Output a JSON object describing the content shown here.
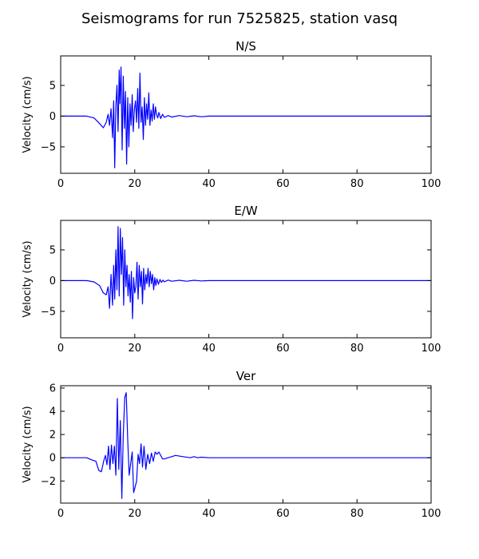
{
  "figure": {
    "title": "Seismograms for run 7525825, station vasq"
  },
  "chart_data": [
    {
      "type": "line",
      "title": "N/S",
      "xlabel": "",
      "ylabel": "Velocity (cm/s)",
      "xlim": [
        0,
        100
      ],
      "ylim": [
        -9.3,
        9.8
      ],
      "xticks": [
        0,
        20,
        40,
        60,
        80,
        100
      ],
      "yticks": [
        5,
        0,
        -5
      ],
      "grid": false,
      "series": [
        {
          "color": "#0000ff",
          "x": [
            0,
            7,
            9,
            10.5,
            11.5,
            12.3,
            12.8,
            13.2,
            13.6,
            14.0,
            14.3,
            14.6,
            14.9,
            15.2,
            15.5,
            15.8,
            16.0,
            16.3,
            16.6,
            16.9,
            17.2,
            17.5,
            17.8,
            18.1,
            18.4,
            18.7,
            19.0,
            19.3,
            19.6,
            19.9,
            20.2,
            20.5,
            20.8,
            21.1,
            21.4,
            21.7,
            22.0,
            22.3,
            22.6,
            22.9,
            23.2,
            23.5,
            23.8,
            24.1,
            24.4,
            24.7,
            25.0,
            25.3,
            25.6,
            25.9,
            26.2,
            26.5,
            27.0,
            27.5,
            28.0,
            29.0,
            30,
            32,
            34,
            36,
            38,
            40,
            50,
            60,
            70,
            80,
            90,
            100
          ],
          "values": [
            0,
            0,
            -0.3,
            -1.2,
            -1.9,
            -1.0,
            0.3,
            -1.5,
            1.2,
            -3.5,
            2.5,
            -8.4,
            1.5,
            5.0,
            -2.5,
            7.5,
            2.0,
            8.0,
            -5.5,
            6.5,
            -2.0,
            4.0,
            -7.8,
            3.0,
            -5.0,
            2.0,
            -1.5,
            3.5,
            -2.5,
            1.0,
            2.5,
            -1.0,
            4.5,
            -2.0,
            7.0,
            -1.0,
            1.5,
            -3.8,
            3.0,
            -1.5,
            2.0,
            -0.5,
            3.8,
            -1.5,
            1.0,
            -0.8,
            2.0,
            -0.5,
            1.5,
            0.2,
            -0.3,
            0.6,
            -0.4,
            0.3,
            -0.2,
            0.1,
            -0.15,
            0.1,
            -0.1,
            0.05,
            -0.1,
            0,
            0,
            0,
            0,
            0,
            0,
            0
          ]
        }
      ]
    },
    {
      "type": "line",
      "title": "E/W",
      "xlabel": "",
      "ylabel": "Velocity (cm/s)",
      "xlim": [
        0,
        100
      ],
      "ylim": [
        -9.3,
        9.8
      ],
      "xticks": [
        0,
        20,
        40,
        60,
        80,
        100
      ],
      "yticks": [
        5,
        0,
        -5
      ],
      "grid": false,
      "series": [
        {
          "color": "#0000ff",
          "x": [
            0,
            7,
            9,
            10.5,
            11.5,
            12.3,
            12.8,
            13.2,
            13.6,
            14.0,
            14.3,
            14.6,
            14.9,
            15.2,
            15.5,
            15.8,
            16.1,
            16.4,
            16.7,
            17.0,
            17.3,
            17.6,
            17.9,
            18.2,
            18.5,
            18.8,
            19.1,
            19.4,
            19.7,
            20.0,
            20.3,
            20.6,
            20.9,
            21.2,
            21.5,
            21.8,
            22.1,
            22.4,
            22.7,
            23.0,
            23.3,
            23.6,
            23.9,
            24.2,
            24.5,
            24.8,
            25.1,
            25.4,
            25.7,
            26.0,
            26.4,
            26.8,
            27.2,
            27.6,
            28.0,
            29.0,
            30,
            32,
            34,
            36,
            38,
            40,
            50,
            60,
            70,
            80,
            90,
            100
          ],
          "values": [
            0,
            0,
            -0.2,
            -0.8,
            -2.0,
            -2.3,
            -1.0,
            -4.5,
            1.0,
            -4.0,
            2.5,
            -3.0,
            5.0,
            -1.5,
            8.8,
            -2.5,
            8.5,
            1.0,
            7.0,
            -4.0,
            5.0,
            -1.0,
            2.5,
            -2.5,
            1.0,
            -3.5,
            1.5,
            -6.2,
            0.5,
            -2.0,
            -1.0,
            3.0,
            -3.0,
            2.5,
            -1.0,
            1.5,
            -3.8,
            2.0,
            -1.5,
            1.0,
            -0.5,
            2.0,
            -1.0,
            1.5,
            -0.5,
            1.0,
            -1.5,
            0.5,
            -0.8,
            0.3,
            -0.6,
            0.2,
            -0.3,
            0.1,
            -0.2,
            0.1,
            -0.1,
            0.05,
            -0.1,
            0.05,
            -0.05,
            0,
            0,
            0,
            0,
            0,
            0,
            0
          ]
        }
      ]
    },
    {
      "type": "line",
      "title": "Ver",
      "xlabel": "",
      "ylabel": "Velocity (cm/s)",
      "xlim": [
        0,
        100
      ],
      "ylim": [
        -3.9,
        6.2
      ],
      "xticks": [
        0,
        20,
        40,
        60,
        80,
        100
      ],
      "yticks": [
        6,
        4,
        2,
        0,
        -2
      ],
      "grid": false,
      "series": [
        {
          "color": "#0000ff",
          "x": [
            0,
            7,
            8.5,
            9.5,
            10.3,
            11.0,
            11.6,
            12.1,
            12.5,
            12.9,
            13.3,
            13.7,
            14.1,
            14.5,
            14.9,
            15.3,
            15.7,
            16.1,
            16.5,
            16.9,
            17.3,
            17.7,
            18.1,
            18.5,
            18.9,
            19.3,
            19.7,
            20.1,
            20.5,
            20.9,
            21.3,
            21.7,
            22.1,
            22.5,
            23.0,
            23.5,
            24.0,
            24.5,
            25.0,
            25.5,
            26.0,
            26.5,
            27.0,
            27.5,
            28.0,
            29,
            30,
            31,
            33,
            35,
            36,
            37,
            38,
            40,
            50,
            60,
            70,
            80,
            90,
            100
          ],
          "values": [
            0,
            0,
            -0.2,
            -0.3,
            -1.1,
            -1.2,
            -0.3,
            0.2,
            -0.6,
            1.0,
            -1.0,
            1.1,
            -0.5,
            1.0,
            -1.5,
            5.1,
            -1.0,
            3.2,
            -3.5,
            2.0,
            5.2,
            5.6,
            1.5,
            -1.5,
            -0.5,
            0.5,
            -3.0,
            -2.5,
            -2.0,
            0.3,
            -0.5,
            1.2,
            -0.8,
            1.0,
            -1.0,
            0.3,
            -0.5,
            0.4,
            -0.3,
            0.5,
            0.3,
            0.5,
            0.2,
            -0.1,
            -0.1,
            0.0,
            0.1,
            0.2,
            0.1,
            0.0,
            0.1,
            0.0,
            0.05,
            0,
            0,
            0,
            0,
            0,
            0,
            0
          ]
        }
      ]
    }
  ]
}
